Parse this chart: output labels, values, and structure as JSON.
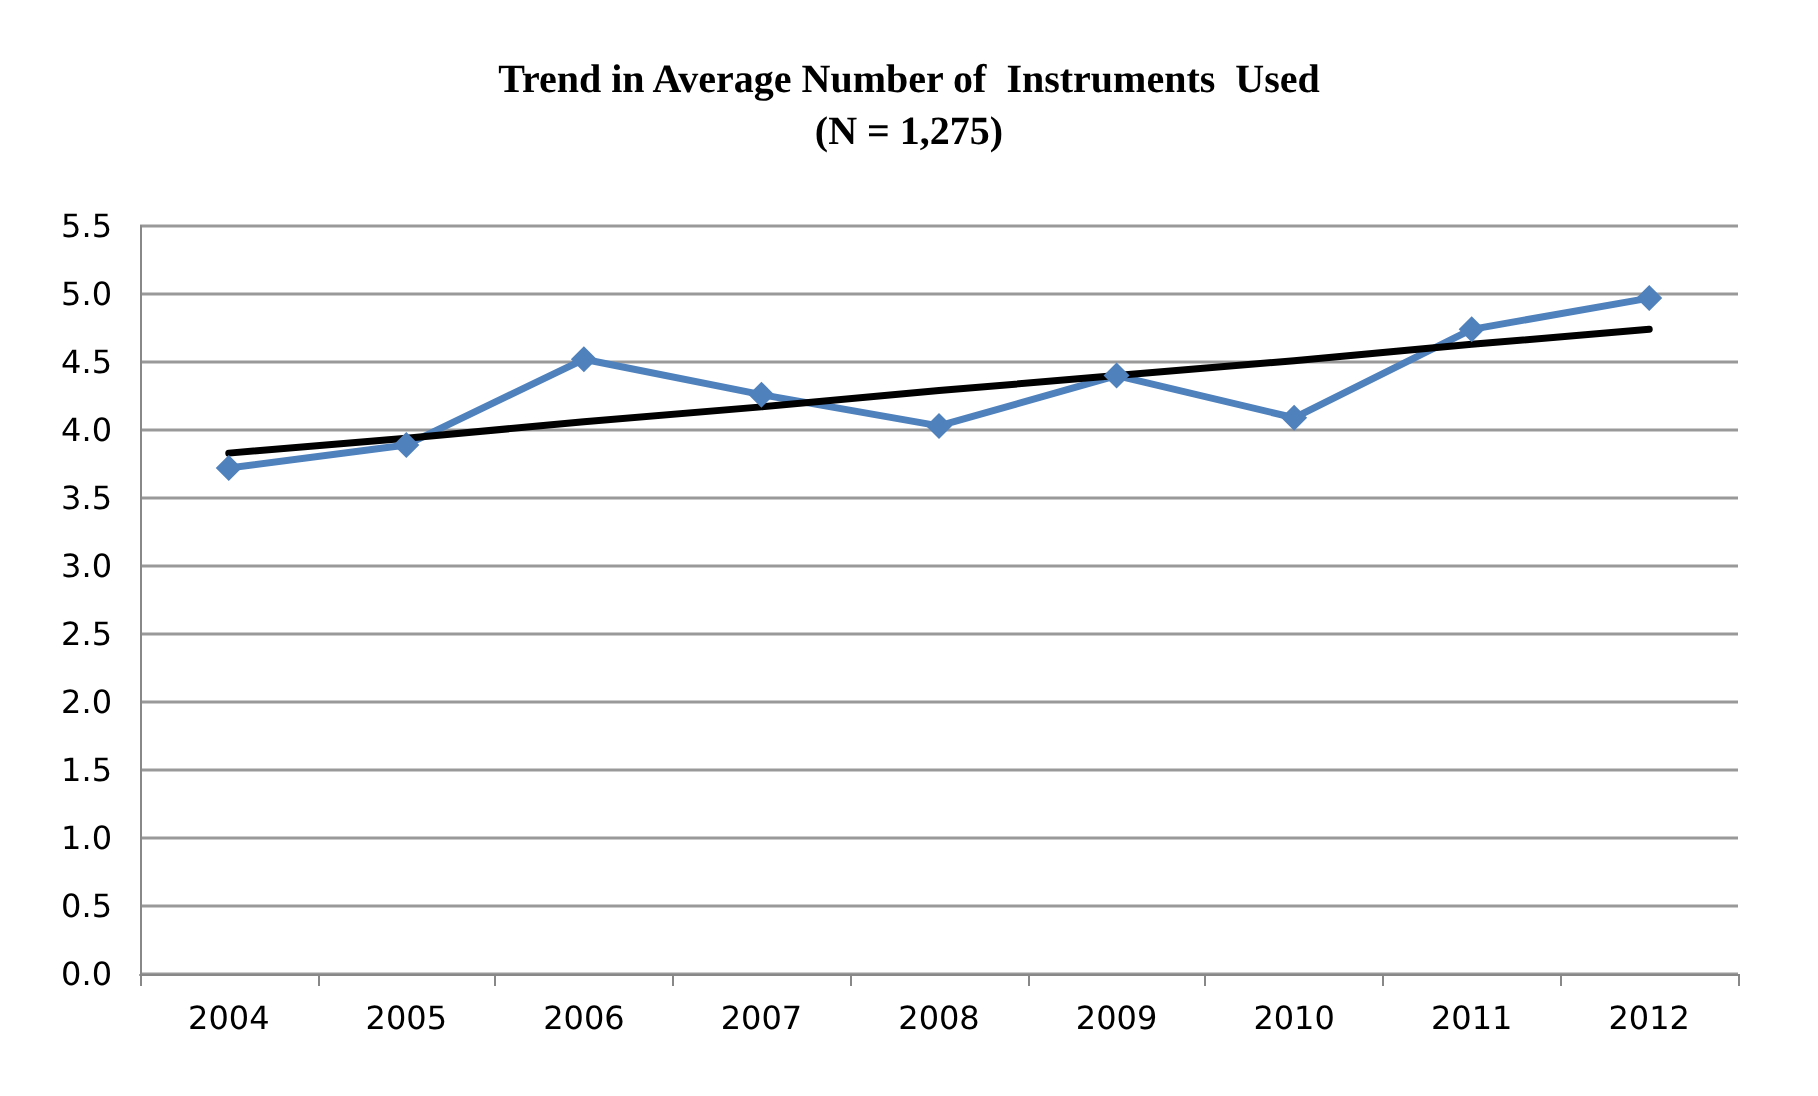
{
  "chart_data": {
    "type": "line",
    "title": "Trend in Average Number of  Instruments  Used\n(N = 1,275)",
    "categories": [
      "2004",
      "2005",
      "2006",
      "2007",
      "2008",
      "2009",
      "2010",
      "2011",
      "2012"
    ],
    "series": [
      {
        "color": "#4f81bd",
        "values": [
          3.72,
          3.89,
          4.52,
          4.26,
          4.03,
          4.4,
          4.09,
          4.74,
          4.97
        ],
        "marker": "diamond"
      },
      {
        "color": "#000000",
        "values": [
          3.83,
          3.94,
          4.06,
          4.17,
          4.29,
          4.4,
          4.51,
          4.63,
          4.74
        ],
        "marker": "none"
      }
    ],
    "ylim": [
      0,
      5.5
    ],
    "yticks": [
      {
        "value": 0,
        "label": "0.0"
      },
      {
        "value": 0.5,
        "label": "0.5"
      },
      {
        "value": 1,
        "label": "1.0"
      },
      {
        "value": 1.5,
        "label": "1.5"
      },
      {
        "value": 2,
        "label": "2.0"
      },
      {
        "value": 2.5,
        "label": "2.5"
      },
      {
        "value": 3,
        "label": "3.0"
      },
      {
        "value": 3.5,
        "label": "3.5"
      },
      {
        "value": 4,
        "label": "4.0"
      },
      {
        "value": 4.5,
        "label": "4.5"
      },
      {
        "value": 5,
        "label": "5.0"
      },
      {
        "value": 5.5,
        "label": "5.5"
      }
    ],
    "grid": "y"
  }
}
